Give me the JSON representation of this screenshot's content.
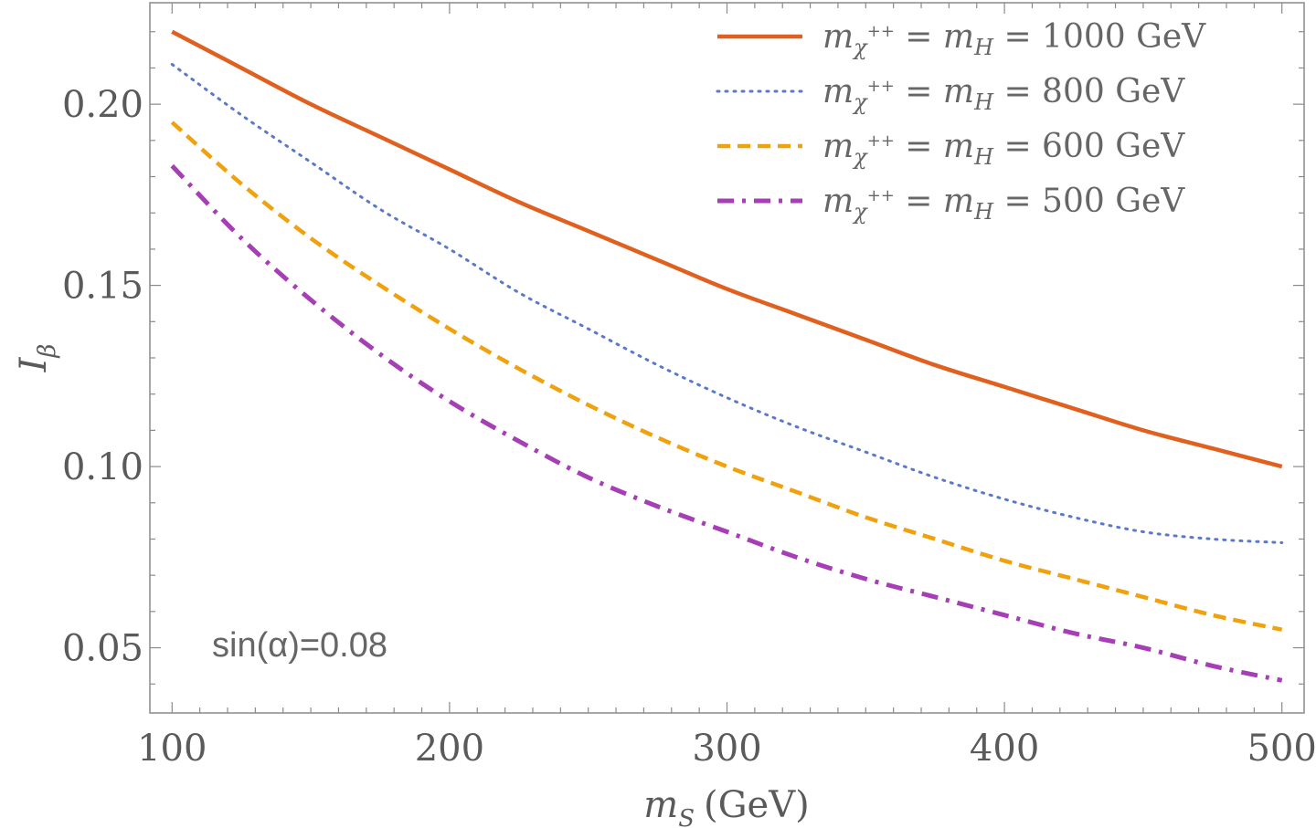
{
  "chart_data": {
    "type": "line",
    "title": "",
    "xlabel": "m_S (GeV)",
    "xlabel_var": "m",
    "xlabel_sub": "S",
    "xlabel_unit": "(GeV)",
    "ylabel": "I_β",
    "ylabel_var": "I",
    "ylabel_sub": "β",
    "xlim": [
      92,
      508
    ],
    "ylim": [
      0.032,
      0.228
    ],
    "xticks": [
      100,
      200,
      300,
      400,
      500
    ],
    "xtick_labels": [
      "100",
      "200",
      "300",
      "400",
      "500"
    ],
    "yticks": [
      0.05,
      0.1,
      0.15,
      0.2
    ],
    "ytick_labels": [
      "0.05",
      "0.10",
      "0.15",
      "0.20"
    ],
    "annotation": "sin(α)=0.08",
    "legend_position": "top-right",
    "x": [
      100,
      125,
      150,
      175,
      200,
      225,
      250,
      275,
      300,
      325,
      350,
      375,
      400,
      425,
      450,
      475,
      500
    ],
    "series": [
      {
        "name": "m_χ++ = m_H = 1000 GeV",
        "label_value": "1000 GeV",
        "style": "solid",
        "color": "#e0601f",
        "values": [
          0.22,
          0.21,
          0.2,
          0.191,
          0.182,
          0.173,
          0.165,
          0.157,
          0.149,
          0.142,
          0.135,
          0.128,
          0.122,
          0.116,
          0.11,
          0.105,
          0.1
        ]
      },
      {
        "name": "m_χ++ = m_H = 800 GeV",
        "label_value": "800 GeV",
        "style": "dotted",
        "color": "#5b79c7",
        "values": [
          0.211,
          0.197,
          0.184,
          0.171,
          0.16,
          0.148,
          0.138,
          0.128,
          0.119,
          0.111,
          0.104,
          0.097,
          0.091,
          0.086,
          0.082,
          0.08,
          0.079
        ]
      },
      {
        "name": "m_χ++ = m_H = 600 GeV",
        "label_value": "600 GeV",
        "style": "dashed",
        "color": "#f0a10e",
        "values": [
          0.195,
          0.178,
          0.163,
          0.15,
          0.138,
          0.127,
          0.117,
          0.108,
          0.1,
          0.093,
          0.086,
          0.08,
          0.074,
          0.069,
          0.064,
          0.059,
          0.055
        ]
      },
      {
        "name": "m_χ++ = m_H = 500 GeV",
        "label_value": "500 GeV",
        "style": "dashdot",
        "color": "#a63fb5",
        "values": [
          0.183,
          0.163,
          0.146,
          0.131,
          0.118,
          0.107,
          0.097,
          0.089,
          0.082,
          0.075,
          0.069,
          0.064,
          0.059,
          0.054,
          0.05,
          0.045,
          0.041
        ]
      }
    ]
  }
}
